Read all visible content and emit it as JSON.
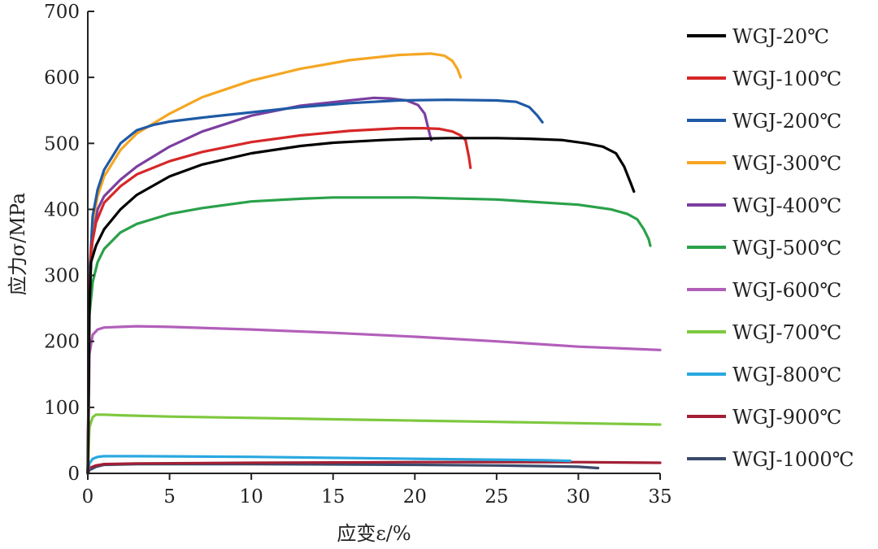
{
  "chart_data": {
    "type": "line",
    "title": "",
    "xlabel": "应变ε/%",
    "ylabel": "应力σ/MPa",
    "xlim": [
      0,
      35
    ],
    "ylim": [
      0,
      700
    ],
    "xticks": [
      0,
      5,
      10,
      15,
      20,
      25,
      30,
      35
    ],
    "yticks": [
      0,
      100,
      200,
      300,
      400,
      500,
      600,
      700
    ],
    "grid": false,
    "legend_position": "right",
    "series": [
      {
        "name": "WGJ-20℃",
        "color": "#000000",
        "points": [
          [
            0,
            0
          ],
          [
            0.1,
            250
          ],
          [
            0.2,
            320
          ],
          [
            0.5,
            345
          ],
          [
            1,
            370
          ],
          [
            2,
            400
          ],
          [
            3,
            422
          ],
          [
            5,
            450
          ],
          [
            7,
            468
          ],
          [
            10,
            485
          ],
          [
            13,
            496
          ],
          [
            15,
            501
          ],
          [
            18,
            505
          ],
          [
            20,
            507
          ],
          [
            22,
            508
          ],
          [
            25,
            508
          ],
          [
            27,
            507
          ],
          [
            29,
            505
          ],
          [
            30.5,
            500
          ],
          [
            31.5,
            495
          ],
          [
            32.3,
            485
          ],
          [
            32.8,
            465
          ],
          [
            33.2,
            440
          ],
          [
            33.4,
            427
          ]
        ]
      },
      {
        "name": "WGJ-100℃",
        "color": "#d62728",
        "points": [
          [
            0,
            0
          ],
          [
            0.1,
            260
          ],
          [
            0.2,
            340
          ],
          [
            0.5,
            380
          ],
          [
            1,
            410
          ],
          [
            2,
            435
          ],
          [
            3,
            453
          ],
          [
            5,
            473
          ],
          [
            7,
            487
          ],
          [
            10,
            502
          ],
          [
            13,
            512
          ],
          [
            16,
            519
          ],
          [
            19,
            523
          ],
          [
            20.5,
            523
          ],
          [
            21.5,
            522
          ],
          [
            22.3,
            518
          ],
          [
            22.8,
            512
          ],
          [
            23.1,
            505
          ],
          [
            23.3,
            480
          ],
          [
            23.4,
            463
          ]
        ]
      },
      {
        "name": "WGJ-200℃",
        "color": "#1f5aa6",
        "points": [
          [
            0,
            0
          ],
          [
            0.1,
            300
          ],
          [
            0.3,
            390
          ],
          [
            0.6,
            430
          ],
          [
            1,
            460
          ],
          [
            2,
            500
          ],
          [
            3,
            520
          ],
          [
            4,
            528
          ],
          [
            5,
            533
          ],
          [
            7,
            539
          ],
          [
            10,
            547
          ],
          [
            13,
            555
          ],
          [
            16,
            561
          ],
          [
            19,
            565
          ],
          [
            22,
            566
          ],
          [
            25,
            565
          ],
          [
            26.2,
            563
          ],
          [
            27,
            555
          ],
          [
            27.5,
            542
          ],
          [
            27.8,
            532
          ]
        ]
      },
      {
        "name": "WGJ-300℃",
        "color": "#f5a623",
        "points": [
          [
            0,
            0
          ],
          [
            0.1,
            280
          ],
          [
            0.3,
            380
          ],
          [
            0.6,
            420
          ],
          [
            1,
            450
          ],
          [
            2,
            490
          ],
          [
            3,
            515
          ],
          [
            5,
            545
          ],
          [
            7,
            570
          ],
          [
            10,
            595
          ],
          [
            13,
            613
          ],
          [
            16,
            626
          ],
          [
            19,
            634
          ],
          [
            21,
            636
          ],
          [
            21.8,
            633
          ],
          [
            22.3,
            625
          ],
          [
            22.6,
            613
          ],
          [
            22.8,
            600
          ]
        ]
      },
      {
        "name": "WGJ-400℃",
        "color": "#7b3fa0",
        "points": [
          [
            0,
            0
          ],
          [
            0.1,
            280
          ],
          [
            0.3,
            360
          ],
          [
            0.6,
            400
          ],
          [
            1,
            420
          ],
          [
            2,
            445
          ],
          [
            3,
            465
          ],
          [
            5,
            495
          ],
          [
            7,
            518
          ],
          [
            10,
            542
          ],
          [
            13,
            557
          ],
          [
            16,
            565
          ],
          [
            17.5,
            569
          ],
          [
            18.5,
            568
          ],
          [
            19.5,
            565
          ],
          [
            20.2,
            558
          ],
          [
            20.6,
            545
          ],
          [
            20.8,
            525
          ],
          [
            21,
            505
          ]
        ]
      },
      {
        "name": "WGJ-500℃",
        "color": "#2aa14a",
        "points": [
          [
            0,
            0
          ],
          [
            0.1,
            240
          ],
          [
            0.3,
            290
          ],
          [
            0.6,
            320
          ],
          [
            1,
            340
          ],
          [
            2,
            365
          ],
          [
            3,
            378
          ],
          [
            5,
            393
          ],
          [
            7,
            402
          ],
          [
            10,
            412
          ],
          [
            13,
            416
          ],
          [
            15,
            418
          ],
          [
            20,
            418
          ],
          [
            25,
            415
          ],
          [
            30,
            407
          ],
          [
            32,
            400
          ],
          [
            33,
            393
          ],
          [
            33.6,
            385
          ],
          [
            34,
            370
          ],
          [
            34.3,
            355
          ],
          [
            34.4,
            345
          ]
        ]
      },
      {
        "name": "WGJ-600℃",
        "color": "#b25fba",
        "points": [
          [
            0,
            0
          ],
          [
            0.1,
            180
          ],
          [
            0.3,
            210
          ],
          [
            0.6,
            218
          ],
          [
            1,
            221
          ],
          [
            2,
            222
          ],
          [
            3,
            223
          ],
          [
            5,
            222
          ],
          [
            10,
            218
          ],
          [
            15,
            213
          ],
          [
            20,
            207
          ],
          [
            25,
            200
          ],
          [
            30,
            192
          ],
          [
            32,
            190
          ],
          [
            35,
            187
          ]
        ]
      },
      {
        "name": "WGJ-700℃",
        "color": "#7ec83f",
        "points": [
          [
            0,
            0
          ],
          [
            0.1,
            70
          ],
          [
            0.3,
            85
          ],
          [
            0.5,
            89
          ],
          [
            1,
            89
          ],
          [
            2,
            88
          ],
          [
            5,
            86
          ],
          [
            10,
            84
          ],
          [
            15,
            82
          ],
          [
            20,
            80
          ],
          [
            25,
            78
          ],
          [
            30,
            76
          ],
          [
            35,
            74
          ]
        ]
      },
      {
        "name": "WGJ-800℃",
        "color": "#29a8e0",
        "points": [
          [
            0,
            0
          ],
          [
            0.1,
            15
          ],
          [
            0.3,
            22
          ],
          [
            0.6,
            25
          ],
          [
            1,
            26
          ],
          [
            3,
            26
          ],
          [
            10,
            25
          ],
          [
            20,
            22
          ],
          [
            28,
            20
          ],
          [
            29.5,
            19
          ]
        ]
      },
      {
        "name": "WGJ-900℃",
        "color": "#a31f34",
        "points": [
          [
            0,
            0
          ],
          [
            0.1,
            8
          ],
          [
            0.5,
            12
          ],
          [
            1,
            14
          ],
          [
            3,
            15
          ],
          [
            10,
            16
          ],
          [
            20,
            17
          ],
          [
            25,
            17
          ],
          [
            30,
            17
          ],
          [
            35,
            16
          ]
        ]
      },
      {
        "name": "WGJ-1000℃",
        "color": "#3a4a6b",
        "points": [
          [
            0,
            0
          ],
          [
            0.1,
            5
          ],
          [
            0.5,
            10
          ],
          [
            1,
            13
          ],
          [
            3,
            14
          ],
          [
            10,
            14
          ],
          [
            20,
            13
          ],
          [
            25,
            12
          ],
          [
            28,
            11
          ],
          [
            30,
            10
          ],
          [
            31.2,
            8
          ]
        ]
      }
    ]
  }
}
